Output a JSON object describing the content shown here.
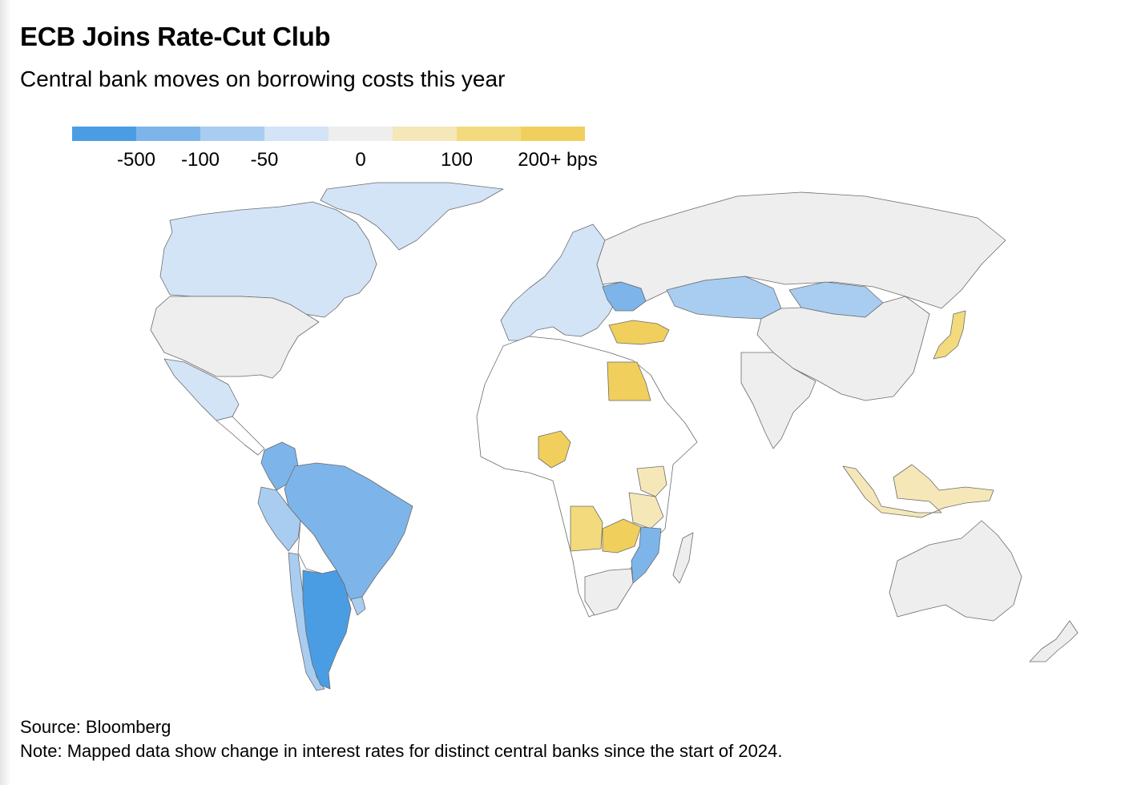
{
  "title": "ECB Joins Rate-Cut Club",
  "subtitle": "Central bank moves on borrowing costs this year",
  "legend": {
    "swatches": [
      {
        "color": "#4a9de3"
      },
      {
        "color": "#7db5ea"
      },
      {
        "color": "#a9cdf1"
      },
      {
        "color": "#d3e4f7"
      },
      {
        "color": "#eeeeee"
      },
      {
        "color": "#f5e7b8"
      },
      {
        "color": "#f3db7d"
      },
      {
        "color": "#f1cf5d"
      }
    ],
    "labels": [
      "-500",
      "-100",
      "-50",
      "0",
      "100",
      "200+ bps"
    ]
  },
  "colors": {
    "cut_500": "#4a9de3",
    "cut_100": "#7db5ea",
    "cut_50": "#a9cdf1",
    "cut_small": "#d3e4f7",
    "no_change": "#eeeeee",
    "hike_small": "#f5e7b8",
    "hike_100": "#f3db7d",
    "hike_200": "#f1cf5d",
    "no_data": "#ffffff"
  },
  "regions": [
    {
      "name": "Canada",
      "category": "cut_small"
    },
    {
      "name": "Greenland",
      "category": "cut_small"
    },
    {
      "name": "United States",
      "category": "no_change"
    },
    {
      "name": "Mexico",
      "category": "cut_small"
    },
    {
      "name": "Central America",
      "category": "no_data"
    },
    {
      "name": "Colombia",
      "category": "cut_100"
    },
    {
      "name": "Peru",
      "category": "cut_50"
    },
    {
      "name": "Brazil",
      "category": "cut_100"
    },
    {
      "name": "Bolivia",
      "category": "no_data"
    },
    {
      "name": "Chile",
      "category": "cut_50"
    },
    {
      "name": "Argentina",
      "category": "cut_500"
    },
    {
      "name": "Uruguay",
      "category": "cut_50"
    },
    {
      "name": "Europe",
      "category": "cut_small"
    },
    {
      "name": "Ukraine",
      "category": "cut_100"
    },
    {
      "name": "Turkey",
      "category": "hike_200"
    },
    {
      "name": "Russia",
      "category": "no_change"
    },
    {
      "name": "Kazakhstan",
      "category": "cut_50"
    },
    {
      "name": "Mongolia",
      "category": "cut_50"
    },
    {
      "name": "China",
      "category": "no_change"
    },
    {
      "name": "Japan",
      "category": "hike_100"
    },
    {
      "name": "India",
      "category": "no_change"
    },
    {
      "name": "Indonesia",
      "category": "hike_small"
    },
    {
      "name": "Australia",
      "category": "no_change"
    },
    {
      "name": "New Zealand",
      "category": "no_change"
    },
    {
      "name": "Egypt",
      "category": "hike_200"
    },
    {
      "name": "Nigeria",
      "category": "hike_200"
    },
    {
      "name": "Angola",
      "category": "hike_100"
    },
    {
      "name": "Zambia",
      "category": "hike_200"
    },
    {
      "name": "Mozambique",
      "category": "cut_100"
    },
    {
      "name": "Tanzania",
      "category": "hike_small"
    },
    {
      "name": "Kenya",
      "category": "hike_small"
    },
    {
      "name": "South Africa",
      "category": "no_change"
    },
    {
      "name": "Madagascar",
      "category": "no_change"
    },
    {
      "name": "Rest of Africa",
      "category": "no_data"
    }
  ],
  "source": "Source: Bloomberg",
  "note": "Note: Mapped data show change in interest rates for distinct central banks since the start of 2024."
}
